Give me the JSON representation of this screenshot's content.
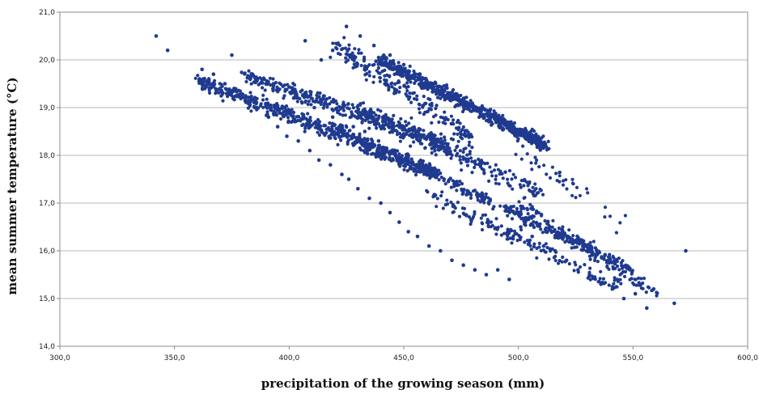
{
  "chart_data": {
    "type": "scatter",
    "title": "",
    "xlabel": "precipitation of the growing season (mm)",
    "ylabel": "mean summer temperature (°C)",
    "xlim": [
      300,
      600
    ],
    "ylim": [
      14,
      21
    ],
    "xticks": [
      "300,0",
      "350,0",
      "400,0",
      "450,0",
      "500,0",
      "550,0",
      "600,0"
    ],
    "yticks": [
      "14,0",
      "15,0",
      "16,0",
      "17,0",
      "18,0",
      "19,0",
      "20,0",
      "21,0"
    ],
    "grid": "horizontal",
    "legend": "none",
    "marker_color": "#1f3a8f",
    "series": [
      {
        "point_count": 82,
        "x": [
          342,
          347,
          362,
          365,
          367,
          372,
          376,
          381,
          386,
          391,
          395,
          399,
          404,
          409,
          413,
          418,
          423,
          426,
          430,
          435,
          440,
          444,
          448,
          452,
          456,
          461,
          466,
          471,
          476,
          481,
          486,
          491,
          496,
          501,
          506,
          511,
          516,
          521,
          526,
          531,
          536,
          541,
          546,
          551,
          556,
          559,
          568,
          573,
          375,
          384,
          393,
          402,
          411,
          419,
          428,
          433,
          439,
          446,
          452,
          458,
          465,
          472,
          479,
          487,
          495,
          503,
          512,
          407,
          414,
          419,
          425,
          431,
          437,
          444,
          450,
          457,
          463,
          470,
          477,
          484,
          491,
          498
        ],
        "y": [
          20.5,
          20.2,
          19.8,
          19.6,
          19.7,
          19.5,
          19.4,
          19.2,
          19.0,
          18.8,
          18.6,
          18.4,
          18.3,
          18.1,
          17.9,
          17.8,
          17.6,
          17.5,
          17.3,
          17.1,
          17.0,
          16.8,
          16.6,
          16.4,
          16.3,
          16.1,
          16.0,
          15.8,
          15.7,
          15.6,
          15.5,
          15.6,
          15.4,
          16.5,
          16.3,
          16.1,
          16.0,
          15.8,
          15.6,
          15.5,
          15.3,
          15.2,
          15.0,
          15.1,
          14.8,
          15.2,
          14.9,
          16.0,
          20.1,
          19.7,
          19.4,
          19.2,
          19.0,
          18.8,
          18.6,
          18.5,
          18.3,
          18.1,
          18.0,
          17.8,
          17.6,
          17.4,
          17.2,
          17.0,
          16.9,
          16.6,
          16.4,
          20.4,
          20.0,
          20.2,
          20.7,
          20.5,
          20.3,
          20.1,
          19.9,
          19.7,
          19.5,
          19.3,
          19.1,
          19.0,
          18.8,
          18.6
        ]
      }
    ]
  }
}
